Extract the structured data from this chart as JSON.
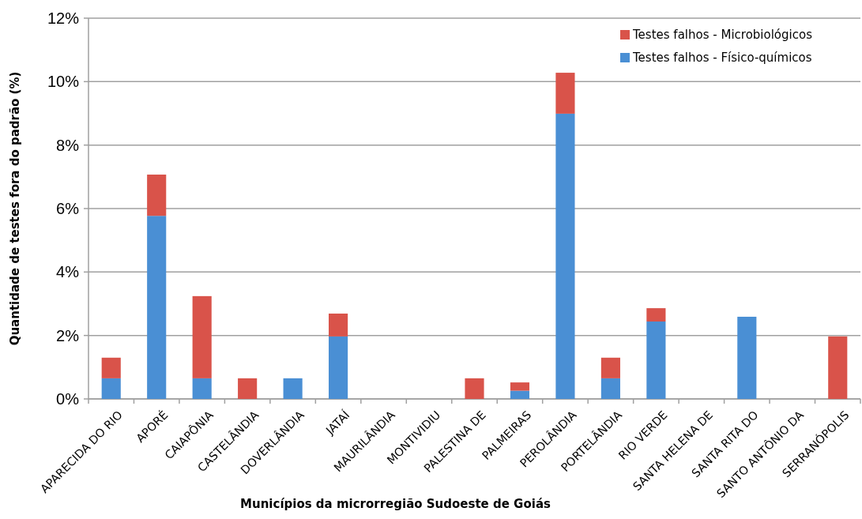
{
  "chart_data": {
    "type": "bar",
    "stacked": true,
    "xlabel": "Municípios da microrregião Sudoeste de Goiás",
    "ylabel": "Quantidade de testes fora do padrão (%)",
    "categories": [
      "APARECIDA DO RIO",
      "APORÉ",
      "CAIAPÔNIA",
      "CASTELÂNDIA",
      "DOVERLÂNDIA",
      "JATAÍ",
      "MAURILÂNDIA",
      "MONTIVIDIU",
      "PALESTINA DE",
      "PALMEIRAS",
      "PEROLÂNDIA",
      "PORTELÂNDIA",
      "RIO VERDE",
      "SANTA HELENA DE",
      "SANTA RITA DO",
      "SANTO ANTÔNIO DA",
      "SERRANÓPOLIS"
    ],
    "series": [
      {
        "name": "Testes falhos - Físico-químicos",
        "color": "#4a8fd4",
        "values": [
          0.65,
          5.77,
          0.65,
          0,
          0.65,
          1.97,
          0,
          0,
          0,
          0.26,
          8.99,
          0.65,
          2.44,
          0,
          2.59,
          0,
          0
        ]
      },
      {
        "name": "Testes falhos - Microbiológicos",
        "color": "#d9534a",
        "values": [
          0.65,
          1.3,
          2.59,
          0.65,
          0,
          0.72,
          0,
          0,
          0.65,
          0.26,
          1.29,
          0.65,
          0.42,
          0,
          0,
          0,
          1.97
        ]
      }
    ],
    "ylim": [
      0,
      12
    ],
    "yticks": [
      {
        "value": 0,
        "label": "0%"
      },
      {
        "value": 2,
        "label": "2%"
      },
      {
        "value": 4,
        "label": "4%"
      },
      {
        "value": 6,
        "label": "6%"
      },
      {
        "value": 8,
        "label": "8%"
      },
      {
        "value": 10,
        "label": "10%"
      },
      {
        "value": 12,
        "label": "12%"
      }
    ],
    "grid": "y",
    "legend": "top right"
  }
}
